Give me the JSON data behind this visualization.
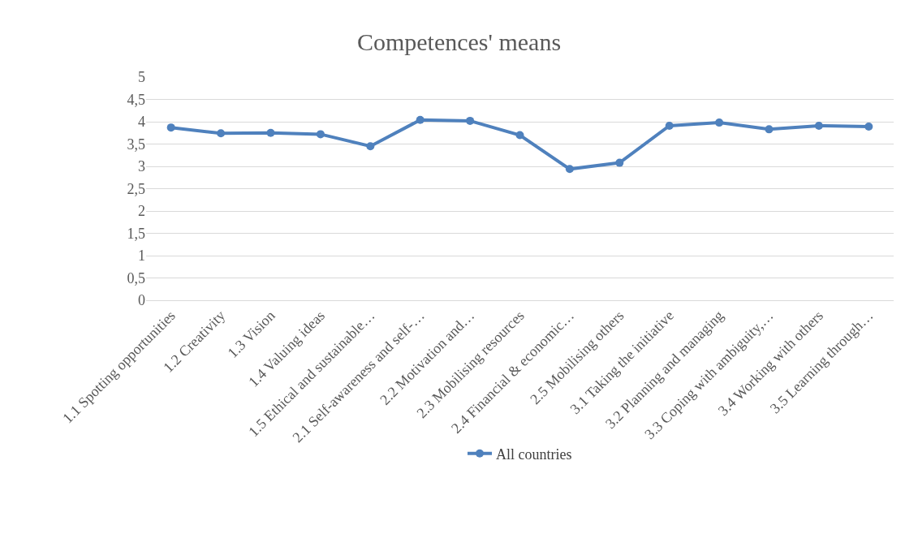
{
  "chart_data": {
    "type": "line",
    "title": "Competences' means",
    "categories": [
      "1.1 Spotting opportunities",
      "1.2 Creativity",
      "1.3 Vision",
      "1.4 Valuing ideas",
      "1.5 Ethical and sustainable…",
      "2.1 Self-awareness and self-…",
      "2.2 Motivation and…",
      "2.3 Mobilising resources",
      "2.4 Financial & economic…",
      "2.5 Mobilising others",
      "3.1 Taking the initiative",
      "3.2 Planning and managing",
      "3.3 Coping with ambiguity,…",
      "3.4 Working with others",
      "3.5 Learning through…"
    ],
    "series": [
      {
        "name": "All countries",
        "color": "#4f81bd",
        "values": [
          3.87,
          3.74,
          3.75,
          3.72,
          3.45,
          4.04,
          4.02,
          3.7,
          2.94,
          3.08,
          3.91,
          3.98,
          3.83,
          3.91,
          3.89
        ]
      }
    ],
    "ylim": [
      0,
      5
    ],
    "yticks": [
      0,
      {
        "value": 0.5,
        "label": "0,5"
      },
      1,
      {
        "value": 1.5,
        "label": "1,5"
      },
      2,
      {
        "value": 2.5,
        "label": "2,5"
      },
      3,
      {
        "value": 3.5,
        "label": "3,5"
      },
      4,
      {
        "value": 4.5,
        "label": "4,5"
      },
      5
    ],
    "grid": "y",
    "legend": "bottom",
    "marker": "circle",
    "line_style": "solid"
  }
}
